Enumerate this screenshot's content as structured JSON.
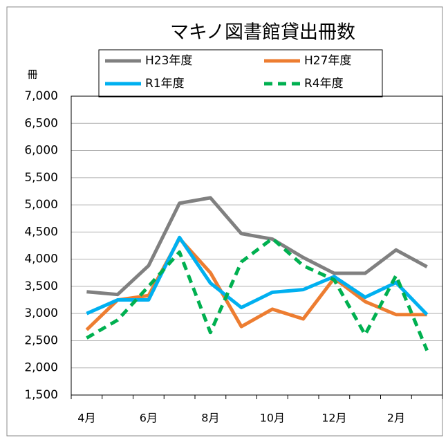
{
  "chart_data": {
    "type": "line",
    "title": "マキノ図書館貸出冊数",
    "y_unit_label": "冊",
    "categories": [
      "4月",
      null,
      "6月",
      null,
      "8月",
      null,
      "10月",
      null,
      "12月",
      null,
      "2月",
      null
    ],
    "series": [
      {
        "name": "H23年度",
        "color": "#808080",
        "dash": false,
        "values": [
          3400,
          3350,
          3880,
          5030,
          5130,
          4470,
          4370,
          4030,
          3740,
          3740,
          4170,
          3860
        ]
      },
      {
        "name": "H27年度",
        "color": "#ed7d31",
        "dash": false,
        "values": [
          2700,
          3250,
          3330,
          4380,
          3750,
          2760,
          3080,
          2900,
          3650,
          3220,
          2980,
          2980
        ]
      },
      {
        "name": "R1年度",
        "color": "#00b0f0",
        "dash": false,
        "values": [
          3000,
          3250,
          3250,
          4400,
          3560,
          3110,
          3390,
          3440,
          3680,
          3300,
          3570,
          2980
        ]
      },
      {
        "name": "R4年度",
        "color": "#00b050",
        "dash": true,
        "values": [
          2550,
          2880,
          3500,
          4130,
          2650,
          3950,
          4380,
          3880,
          3620,
          2610,
          3700,
          2320
        ]
      }
    ],
    "ylim": [
      1500,
      7000
    ],
    "yticks": [
      {
        "value": 1500,
        "label": "1,500"
      },
      {
        "value": 2000,
        "label": "2,000"
      },
      {
        "value": 2500,
        "label": "2,500"
      },
      {
        "value": 3000,
        "label": "3,000"
      },
      {
        "value": 3500,
        "label": "3,500"
      },
      {
        "value": 4000,
        "label": "4,000"
      },
      {
        "value": 4500,
        "label": "4,500"
      },
      {
        "value": 5000,
        "label": "5,000"
      },
      {
        "value": 5500,
        "label": "5,500"
      },
      {
        "value": 6000,
        "label": "6,000"
      },
      {
        "value": 6500,
        "label": "6,500"
      },
      {
        "value": 7000,
        "label": "7,000"
      }
    ],
    "grid": true
  }
}
